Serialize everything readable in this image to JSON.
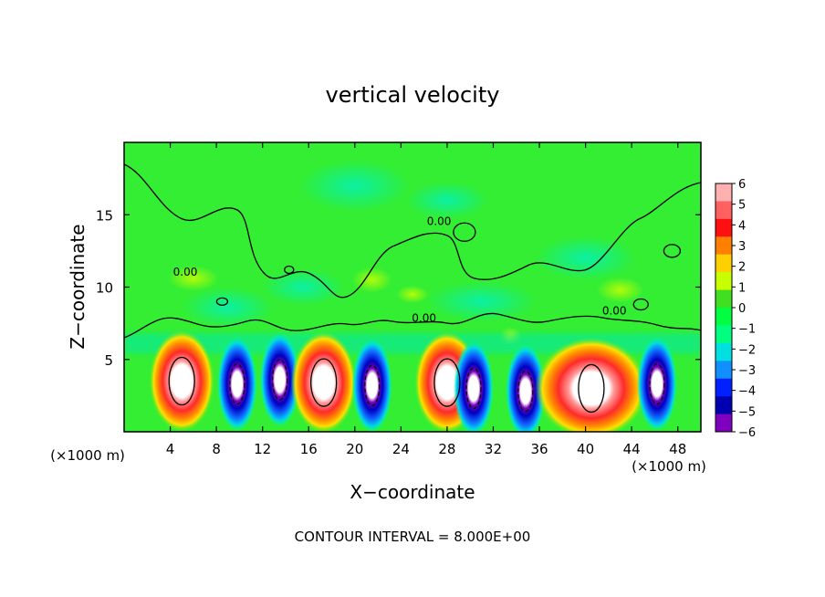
{
  "chart_data": {
    "type": "heatmap",
    "title": "vertical velocity",
    "xlabel": "X−coordinate",
    "ylabel": "Z−coordinate",
    "x_unit_left": "(×1000 m)",
    "x_unit_right": "(×1000 m)",
    "xlim": [
      0,
      50
    ],
    "ylim": [
      0,
      20
    ],
    "x_ticks": [
      4,
      8,
      12,
      16,
      20,
      24,
      28,
      32,
      36,
      40,
      44,
      48
    ],
    "x_tick_labels": [
      "4",
      "8",
      "12",
      "16",
      "20",
      "24",
      "28",
      "32",
      "36",
      "40",
      "44",
      "48"
    ],
    "y_ticks": [
      5,
      10,
      15
    ],
    "y_tick_labels": [
      "5",
      "10",
      "15"
    ],
    "footer": "CONTOUR INTERVAL = 8.000E+00",
    "contour_labels": [
      {
        "text": "0.00",
        "x": 5.3,
        "z": 10.8
      },
      {
        "text": "0.00",
        "x": 27.3,
        "z": 14.3
      },
      {
        "text": "0.00",
        "x": 26.0,
        "z": 7.6
      },
      {
        "text": "0.00",
        "x": 42.5,
        "z": 8.1
      }
    ],
    "colorbar": {
      "labels": [
        "6",
        "5",
        "4",
        "3",
        "2",
        "1",
        "0",
        "−1",
        "−2",
        "−3",
        "−4",
        "−5",
        "−6"
      ],
      "colors": [
        "#ffb0b0",
        "#ff6060",
        "#ff1010",
        "#ff8000",
        "#ffd000",
        "#c8ff00",
        "#40e020",
        "#00ff40",
        "#00ff80",
        "#00e0e0",
        "#1090ff",
        "#0020ff",
        "#0000b0",
        "#8000c0"
      ]
    },
    "background_color": "#33ee33",
    "cells": [
      {
        "sign": "up",
        "x": 5.0,
        "z": 3.5,
        "peak": 6
      },
      {
        "sign": "down",
        "x": 9.8,
        "z": 3.3,
        "peak": -6
      },
      {
        "sign": "down",
        "x": 13.5,
        "z": 3.6,
        "peak": -5
      },
      {
        "sign": "up",
        "x": 17.3,
        "z": 3.4,
        "peak": 6
      },
      {
        "sign": "down",
        "x": 21.5,
        "z": 3.2,
        "peak": -6
      },
      {
        "sign": "up",
        "x": 28.0,
        "z": 3.4,
        "peak": 6
      },
      {
        "sign": "down",
        "x": 30.3,
        "z": 3.0,
        "peak": -6
      },
      {
        "sign": "down",
        "x": 34.8,
        "z": 2.8,
        "peak": -6
      },
      {
        "sign": "up",
        "x": 40.5,
        "z": 3.0,
        "peak": 6
      },
      {
        "sign": "down",
        "x": 46.2,
        "z": 3.3,
        "peak": -6
      }
    ]
  }
}
